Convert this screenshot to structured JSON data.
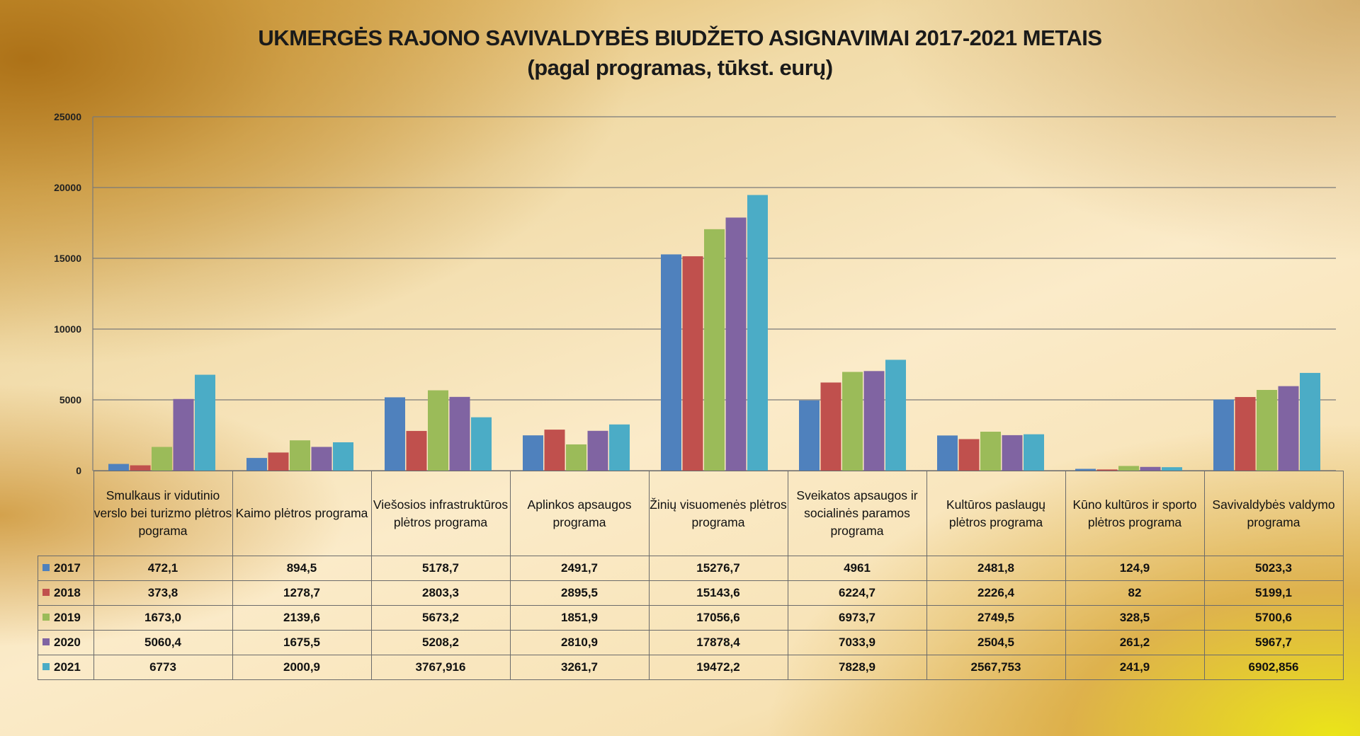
{
  "title": "UKMERGĖS RAJONO SAVIVALDYBĖS BIUDŽETO ASIGNAVIMAI 2017-2021 METAIS",
  "subtitle": "(pagal programas, tūkst. eurų)",
  "colors": [
    "#4f81bd",
    "#c0504d",
    "#9bbb59",
    "#8064a2",
    "#4bacc6"
  ],
  "chart_data": {
    "type": "bar",
    "title": "UKMERGĖS RAJONO SAVIVALDYBĖS BIUDŽETO ASIGNAVIMAI 2017-2021 METAIS",
    "subtitle": "(pagal programas, tūkst. eurų)",
    "ylim": [
      0,
      25000
    ],
    "yticks": [
      "0",
      "5000",
      "10000",
      "15000",
      "20000",
      "25000"
    ],
    "grid": true,
    "legend": "data-table",
    "categories": [
      "Smulkaus ir vidutinio verslo bei turizmo plėtros pograma",
      "Kaimo plėtros programa",
      "Viešosios infrastruktūros plėtros programa",
      "Aplinkos apsaugos programa",
      "Žinių visuomenės plėtros programa",
      "Sveikatos apsaugos ir socialinės paramos programa",
      "Kultūros paslaugų plėtros programa",
      "Kūno kultūros ir sporto plėtros programa",
      "Savivaldybės valdymo programa"
    ],
    "series": [
      {
        "name": "2017",
        "values": [
          472.1,
          894.5,
          5178.7,
          2491.7,
          15276.7,
          4961,
          2481.8,
          124.9,
          5023.3
        ],
        "labels": [
          "472,1",
          "894,5",
          "5178,7",
          "2491,7",
          "15276,7",
          "4961",
          "2481,8",
          "124,9",
          "5023,3"
        ]
      },
      {
        "name": "2018",
        "values": [
          373.8,
          1278.7,
          2803.3,
          2895.5,
          15143.6,
          6224.7,
          2226.4,
          82,
          5199.1
        ],
        "labels": [
          "373,8",
          "1278,7",
          "2803,3",
          "2895,5",
          "15143,6",
          "6224,7",
          "2226,4",
          "82",
          "5199,1"
        ]
      },
      {
        "name": "2019",
        "values": [
          1673.0,
          2139.6,
          5673.2,
          1851.9,
          17056.6,
          6973.7,
          2749.5,
          328.5,
          5700.6
        ],
        "labels": [
          "1673,0",
          "2139,6",
          "5673,2",
          "1851,9",
          "17056,6",
          "6973,7",
          "2749,5",
          "328,5",
          "5700,6"
        ]
      },
      {
        "name": "2020",
        "values": [
          5060.4,
          1675.5,
          5208.2,
          2810.9,
          17878.4,
          7033.9,
          2504.5,
          261.2,
          5967.7
        ],
        "labels": [
          "5060,4",
          "1675,5",
          "5208,2",
          "2810,9",
          "17878,4",
          "7033,9",
          "2504,5",
          "261,2",
          "5967,7"
        ]
      },
      {
        "name": "2021",
        "values": [
          6773,
          2000.9,
          3767.916,
          3261.7,
          19472.2,
          7828.9,
          2567.753,
          241.9,
          6902.856
        ],
        "labels": [
          "6773",
          "2000,9",
          "3767,916",
          "3261,7",
          "19472,2",
          "7828,9",
          "2567,753",
          "241,9",
          "6902,856"
        ]
      }
    ]
  }
}
